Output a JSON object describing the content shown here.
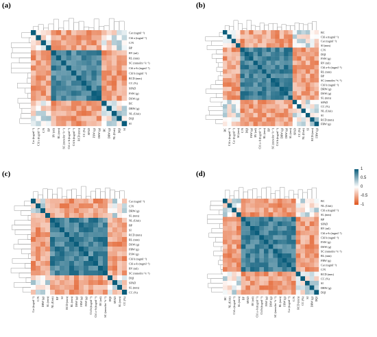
{
  "figure": {
    "colorbar": {
      "ticks": [
        "1",
        "0.5",
        "0",
        "-0.5",
        "-1"
      ],
      "colors": {
        "positive": "#0b5d7b",
        "mid": "#ffffff",
        "negative": "#e0541c"
      }
    }
  },
  "chart_data": [
    {
      "type": "heatmap",
      "panel_label": "(a)",
      "labels": [
        "Car (tugml⁻¹)",
        "Chl a (tugml⁻¹)",
        "C/N",
        "BP",
        "RV (ml)",
        "RL (mm)",
        "SC (mmolm⁻²s⁻¹)",
        "Chl a+b (tugml⁻¹)",
        "Chl b (tugml⁻¹)",
        "RCD (mm)",
        "CC (%)",
        "SPAD",
        "FSW (g)",
        "DSW (g)",
        "BC",
        "DRW (g)",
        "NL (Unit)",
        "DQI",
        "SI"
      ],
      "value_range": [
        -1,
        1
      ],
      "row_dendrogram": true,
      "col_dendrogram": true
    },
    {
      "type": "heatmap",
      "panel_label": "(b)",
      "labels": [
        "BC",
        "Chl a (tugml⁻¹)",
        "Car (tugml⁻¹)",
        "SI (mm)",
        "C/N",
        "DQI",
        "FSW (g)",
        "RV (ml)",
        "Chl a+b (tugml⁻¹)",
        "RL (mm)",
        "BP",
        "SC (mmolm⁻²s⁻¹)",
        "Chl b (tugml⁻¹)",
        "DRW (g)",
        "DSW (g)",
        "SL (mm)",
        "SPAD",
        "CC (%)",
        "NL (Unit)",
        "SI",
        "RCD (mm)",
        "FRW (g)"
      ],
      "value_range": [
        -1,
        1
      ],
      "row_dendrogram": true,
      "col_dendrogram": true
    },
    {
      "type": "heatmap",
      "panel_label": "(c)",
      "labels": [
        "Car (tugml⁻¹)",
        "C/N",
        "DRW (g)",
        "SL (mm)",
        "NL (Unit)",
        "BP",
        "SI",
        "RCD (mm)",
        "RL (mm)",
        "DSW (g)",
        "FRW (g)",
        "FSW (g)",
        "Chl b (tugml⁻¹)",
        "Chl a+b (tugml⁻¹)",
        "RV (ml)",
        "SC (mmolm⁻²s⁻¹)",
        "DQI",
        "SPAD",
        "SL (mm)",
        "CC (%)"
      ],
      "value_range": [
        -1,
        1
      ],
      "row_dendrogram": true,
      "col_dendrogram": true
    },
    {
      "type": "heatmap",
      "panel_label": "(d)",
      "labels": [
        "BC",
        "NL (Unit)",
        "Chl a (tugml⁻¹)",
        "SL (mm)",
        "BP",
        "SPAD",
        "RV (ml)",
        "Chl a+b (tugml⁻¹)",
        "Chl b (tugml⁻¹)",
        "FSW (g)",
        "DSW (g)",
        "SC (mmolm⁻²s⁻¹)",
        "RL (mm)",
        "FRW (g)",
        "Car (tugml⁻¹)",
        "C/N",
        "RCD (mm)",
        "CC (%)",
        "SI",
        "DRW (g)",
        "DQI"
      ],
      "value_range": [
        -1,
        1
      ],
      "row_dendrogram": true,
      "col_dendrogram": true
    }
  ]
}
